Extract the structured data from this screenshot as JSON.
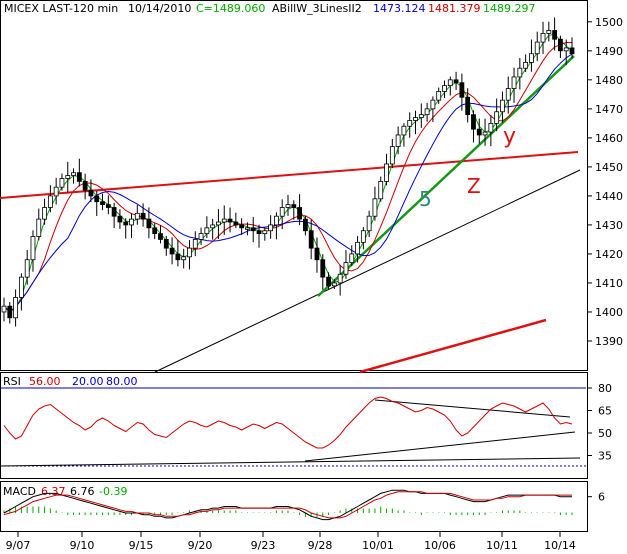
{
  "header": {
    "symbol": "MICEX LAST-120 min",
    "date": "10/14/2010",
    "close": "C=1489.060",
    "indicator": "ABillW_3LinesII2",
    "val_blue": "1473.124",
    "val_red": "1481.379",
    "val_green": "1489.297"
  },
  "colors": {
    "price": "#000000",
    "ma_red": "#cc0000",
    "ma_green": "#00aa00",
    "ma_blue": "#0000cc",
    "trend_red": "#dd1111",
    "trend_green": "#119911",
    "rsi": "#cc0000",
    "macd": "#000000",
    "macd_signal": "#cc0000",
    "macd_hist": "#00aa00",
    "ref_line": "#0000aa",
    "axis_text": "#000000"
  },
  "annotations": {
    "wave_5": "5",
    "wave_y": "y",
    "wave_z": "Z"
  },
  "rsi": {
    "label": "RSI",
    "value": "56.00",
    "low": "20.00",
    "high": "80.00"
  },
  "macd": {
    "label": "MACD",
    "value": "6.37",
    "signal": "6.76",
    "hist": "-0.39"
  },
  "chart_data": [
    {
      "type": "candlestick",
      "panel": "price",
      "ylim": [
        1380,
        1502
      ],
      "yticks": [
        1390,
        1400,
        1410,
        1420,
        1430,
        1440,
        1450,
        1460,
        1470,
        1480,
        1490,
        1500
      ],
      "xticks": [
        "9/07",
        "9/10",
        "9/15",
        "9/20",
        "9/23",
        "9/28",
        "10/01",
        "10/06",
        "10/11",
        "10/14"
      ],
      "close_series": [
        1402,
        1398,
        1405,
        1412,
        1418,
        1426,
        1432,
        1436,
        1440,
        1443,
        1446,
        1447,
        1448,
        1445,
        1442,
        1440,
        1438,
        1437,
        1436,
        1433,
        1431,
        1430,
        1432,
        1434,
        1432,
        1429,
        1427,
        1425,
        1422,
        1420,
        1418,
        1419,
        1422,
        1425,
        1427,
        1429,
        1430,
        1431,
        1432,
        1431,
        1430,
        1429,
        1429,
        1428,
        1427,
        1428,
        1430,
        1433,
        1436,
        1437,
        1436,
        1432,
        1428,
        1422,
        1418,
        1412,
        1409,
        1410,
        1413,
        1417,
        1420,
        1424,
        1428,
        1433,
        1439,
        1445,
        1451,
        1457,
        1461,
        1464,
        1466,
        1467,
        1468,
        1470,
        1473,
        1476,
        1478,
        1480,
        1479,
        1474,
        1468,
        1463,
        1461,
        1462,
        1465,
        1469,
        1473,
        1477,
        1481,
        1484,
        1486,
        1489,
        1493,
        1496,
        1497,
        1494,
        1490,
        1491,
        1489
      ]
    },
    {
      "type": "line",
      "panel": "rsi",
      "ylim": [
        20,
        90
      ],
      "yticks": [
        35,
        50,
        65,
        80
      ],
      "reference_lines": [
        20,
        80
      ],
      "values": [
        55,
        50,
        46,
        48,
        55,
        62,
        66,
        68,
        69,
        66,
        63,
        60,
        57,
        55,
        52,
        54,
        58,
        60,
        58,
        55,
        53,
        51,
        54,
        57,
        56,
        52,
        49,
        48,
        47,
        50,
        53,
        56,
        58,
        57,
        55,
        54,
        56,
        58,
        57,
        55,
        54,
        52,
        54,
        56,
        55,
        53,
        55,
        57,
        56,
        53,
        50,
        47,
        44,
        42,
        40,
        40,
        42,
        45,
        49,
        54,
        58,
        62,
        66,
        70,
        73,
        74,
        73,
        71,
        70,
        68,
        66,
        64,
        65,
        67,
        66,
        64,
        62,
        58,
        52,
        48,
        50,
        54,
        58,
        62,
        66,
        68,
        70,
        69,
        68,
        66,
        64,
        66,
        68,
        70,
        66,
        60,
        56,
        57,
        56
      ]
    },
    {
      "type": "line",
      "panel": "macd",
      "yticks": [
        6
      ],
      "ylim": [
        -15,
        15
      ],
      "series": [
        {
          "values": [
            -4,
            -2,
            0,
            2,
            4,
            6,
            7,
            8,
            8,
            8,
            7,
            6,
            5,
            4,
            3,
            2,
            1,
            0,
            -1,
            -2,
            -3,
            -4,
            -4,
            -4,
            -5,
            -5,
            -6,
            -6,
            -7,
            -7,
            -6,
            -5,
            -4,
            -3,
            -2,
            -2,
            -1,
            -1,
            0,
            0,
            0,
            -1,
            -1,
            -1,
            -1,
            -1,
            -1,
            0,
            0,
            0,
            -1,
            -2,
            -4,
            -6,
            -7,
            -8,
            -8,
            -7,
            -6,
            -4,
            -2,
            0,
            2,
            4,
            6,
            8,
            9,
            10,
            10,
            10,
            9,
            9,
            8,
            8,
            8,
            8,
            8,
            7,
            6,
            5,
            4,
            3,
            3,
            3,
            4,
            5,
            6,
            7,
            7,
            7,
            7,
            7,
            7,
            7,
            7,
            7,
            6,
            6,
            6
          ]
        },
        {
          "values": [
            -5,
            -4,
            -3,
            -1,
            1,
            3,
            4,
            5,
            6,
            7,
            7,
            7,
            6,
            5,
            4,
            3,
            2,
            1,
            0,
            -1,
            -2,
            -3,
            -3,
            -4,
            -4,
            -4,
            -5,
            -5,
            -6,
            -6,
            -6,
            -5,
            -5,
            -4,
            -3,
            -3,
            -2,
            -2,
            -1,
            -1,
            -1,
            -1,
            -1,
            -1,
            -1,
            -1,
            -1,
            -1,
            -1,
            -1,
            -1,
            -1,
            -2,
            -4,
            -5,
            -6,
            -7,
            -7,
            -7,
            -6,
            -4,
            -2,
            0,
            2,
            4,
            5,
            7,
            8,
            9,
            9,
            9,
            9,
            9,
            8,
            8,
            8,
            8,
            8,
            7,
            6,
            5,
            4,
            4,
            4,
            4,
            5,
            5,
            6,
            6,
            6,
            7,
            7,
            7,
            7,
            7,
            7,
            7,
            7,
            7
          ]
        }
      ]
    }
  ]
}
